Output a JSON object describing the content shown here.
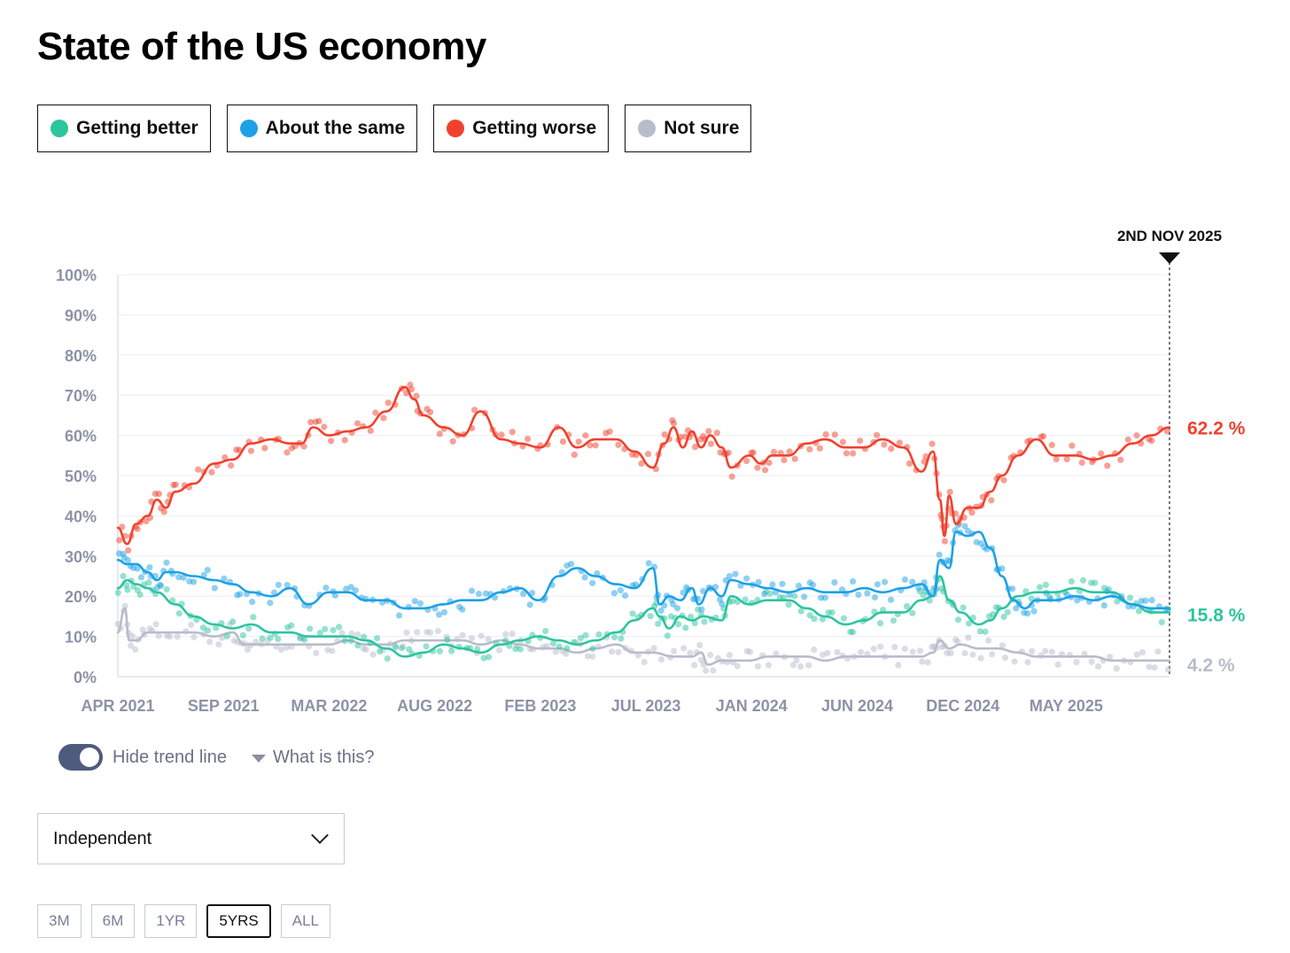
{
  "title": "State of the US economy",
  "legend": [
    {
      "label": "Getting better",
      "color": "#2ec4a0"
    },
    {
      "label": "About the same",
      "color": "#1da1e6"
    },
    {
      "label": "Getting worse",
      "color": "#f0412e"
    },
    {
      "label": "Not sure",
      "color": "#b8bccb"
    }
  ],
  "chart_data": {
    "type": "line",
    "title": "State of the US economy",
    "xlabel": "",
    "ylabel": "",
    "ylim": [
      0,
      100
    ],
    "x_range": [
      2021.25,
      2025.83
    ],
    "y_ticks": [
      "100%",
      "90%",
      "80%",
      "70%",
      "60%",
      "50%",
      "40%",
      "30%",
      "20%",
      "10%",
      "0%"
    ],
    "x_ticks": [
      {
        "label": "APR 2021",
        "t": 2021.25
      },
      {
        "label": "SEP 2021",
        "t": 2021.71
      },
      {
        "label": "MAR 2022",
        "t": 2022.17
      },
      {
        "label": "AUG 2022",
        "t": 2022.63
      },
      {
        "label": "FEB 2023",
        "t": 2023.09
      },
      {
        "label": "JUL 2023",
        "t": 2023.55
      },
      {
        "label": "JAN 2024",
        "t": 2024.01
      },
      {
        "label": "JUN 2024",
        "t": 2024.47
      },
      {
        "label": "DEC 2024",
        "t": 2024.93
      },
      {
        "label": "MAY 2025",
        "t": 2025.38
      }
    ],
    "current_marker": {
      "label": "2ND NOV 2025",
      "t": 2025.83
    },
    "series": [
      {
        "name": "Getting worse",
        "color": "#f0412e",
        "end_label": "62.2 %",
        "points": [
          [
            2021.25,
            37
          ],
          [
            2021.29,
            33
          ],
          [
            2021.33,
            38
          ],
          [
            2021.38,
            40
          ],
          [
            2021.42,
            44
          ],
          [
            2021.46,
            42
          ],
          [
            2021.5,
            46
          ],
          [
            2021.58,
            48
          ],
          [
            2021.67,
            53
          ],
          [
            2021.75,
            54
          ],
          [
            2021.83,
            58
          ],
          [
            2021.92,
            59
          ],
          [
            2022.0,
            58
          ],
          [
            2022.05,
            58
          ],
          [
            2022.1,
            62
          ],
          [
            2022.17,
            60
          ],
          [
            2022.25,
            61
          ],
          [
            2022.33,
            62
          ],
          [
            2022.42,
            66
          ],
          [
            2022.5,
            72
          ],
          [
            2022.54,
            69
          ],
          [
            2022.58,
            65
          ],
          [
            2022.67,
            62
          ],
          [
            2022.75,
            60
          ],
          [
            2022.83,
            66
          ],
          [
            2022.92,
            59
          ],
          [
            2023.0,
            58
          ],
          [
            2023.09,
            57
          ],
          [
            2023.17,
            62
          ],
          [
            2023.25,
            57
          ],
          [
            2023.33,
            59
          ],
          [
            2023.42,
            59
          ],
          [
            2023.5,
            56
          ],
          [
            2023.58,
            52
          ],
          [
            2023.63,
            58
          ],
          [
            2023.67,
            62
          ],
          [
            2023.71,
            57
          ],
          [
            2023.75,
            61
          ],
          [
            2023.79,
            57
          ],
          [
            2023.83,
            60
          ],
          [
            2023.88,
            57
          ],
          [
            2023.92,
            52
          ],
          [
            2024.0,
            55
          ],
          [
            2024.05,
            53
          ],
          [
            2024.1,
            55
          ],
          [
            2024.17,
            55
          ],
          [
            2024.25,
            58
          ],
          [
            2024.33,
            59
          ],
          [
            2024.42,
            57
          ],
          [
            2024.5,
            57
          ],
          [
            2024.58,
            59
          ],
          [
            2024.67,
            57
          ],
          [
            2024.75,
            51
          ],
          [
            2024.8,
            56
          ],
          [
            2024.83,
            44
          ],
          [
            2024.85,
            35
          ],
          [
            2024.87,
            45
          ],
          [
            2024.9,
            38
          ],
          [
            2024.95,
            42
          ],
          [
            2025.0,
            42
          ],
          [
            2025.05,
            46
          ],
          [
            2025.1,
            50
          ],
          [
            2025.17,
            55
          ],
          [
            2025.25,
            59
          ],
          [
            2025.33,
            55
          ],
          [
            2025.42,
            55
          ],
          [
            2025.5,
            54
          ],
          [
            2025.58,
            55
          ],
          [
            2025.67,
            58
          ],
          [
            2025.75,
            60
          ],
          [
            2025.83,
            62
          ]
        ]
      },
      {
        "name": "About the same",
        "color": "#1da1e6",
        "end_label": "",
        "points": [
          [
            2021.25,
            29
          ],
          [
            2021.29,
            28
          ],
          [
            2021.33,
            28
          ],
          [
            2021.38,
            26
          ],
          [
            2021.42,
            24
          ],
          [
            2021.46,
            26
          ],
          [
            2021.5,
            26
          ],
          [
            2021.58,
            25
          ],
          [
            2021.67,
            24
          ],
          [
            2021.75,
            23
          ],
          [
            2021.83,
            21
          ],
          [
            2021.92,
            20
          ],
          [
            2022.0,
            22
          ],
          [
            2022.08,
            18
          ],
          [
            2022.17,
            21
          ],
          [
            2022.25,
            21
          ],
          [
            2022.33,
            19
          ],
          [
            2022.42,
            19
          ],
          [
            2022.5,
            17
          ],
          [
            2022.58,
            17
          ],
          [
            2022.67,
            18
          ],
          [
            2022.75,
            19
          ],
          [
            2022.83,
            19
          ],
          [
            2022.92,
            21
          ],
          [
            2023.0,
            22
          ],
          [
            2023.08,
            19
          ],
          [
            2023.17,
            25
          ],
          [
            2023.25,
            27
          ],
          [
            2023.33,
            25
          ],
          [
            2023.42,
            23
          ],
          [
            2023.5,
            22
          ],
          [
            2023.58,
            27
          ],
          [
            2023.61,
            18
          ],
          [
            2023.65,
            20
          ],
          [
            2023.7,
            19
          ],
          [
            2023.75,
            22
          ],
          [
            2023.78,
            18
          ],
          [
            2023.83,
            22
          ],
          [
            2023.88,
            20
          ],
          [
            2023.92,
            24
          ],
          [
            2024.0,
            23
          ],
          [
            2024.08,
            22
          ],
          [
            2024.17,
            21
          ],
          [
            2024.25,
            22
          ],
          [
            2024.33,
            21
          ],
          [
            2024.42,
            21
          ],
          [
            2024.5,
            22
          ],
          [
            2024.58,
            21
          ],
          [
            2024.67,
            22
          ],
          [
            2024.75,
            23
          ],
          [
            2024.8,
            20
          ],
          [
            2024.83,
            29
          ],
          [
            2024.87,
            27
          ],
          [
            2024.9,
            36
          ],
          [
            2024.95,
            35
          ],
          [
            2025.0,
            36
          ],
          [
            2025.05,
            32
          ],
          [
            2025.1,
            25
          ],
          [
            2025.15,
            19
          ],
          [
            2025.2,
            17
          ],
          [
            2025.25,
            19
          ],
          [
            2025.33,
            19
          ],
          [
            2025.42,
            20
          ],
          [
            2025.5,
            19
          ],
          [
            2025.58,
            20
          ],
          [
            2025.67,
            18
          ],
          [
            2025.75,
            17
          ],
          [
            2025.83,
            17
          ]
        ]
      },
      {
        "name": "Getting better",
        "color": "#2ec4a0",
        "end_label": "15.8 %",
        "points": [
          [
            2021.25,
            22
          ],
          [
            2021.29,
            24
          ],
          [
            2021.33,
            23
          ],
          [
            2021.38,
            22
          ],
          [
            2021.42,
            21
          ],
          [
            2021.5,
            18
          ],
          [
            2021.58,
            15
          ],
          [
            2021.67,
            13
          ],
          [
            2021.75,
            12
          ],
          [
            2021.83,
            13
          ],
          [
            2021.92,
            11
          ],
          [
            2022.0,
            11
          ],
          [
            2022.08,
            10
          ],
          [
            2022.17,
            10
          ],
          [
            2022.25,
            10
          ],
          [
            2022.33,
            9
          ],
          [
            2022.42,
            7
          ],
          [
            2022.5,
            5
          ],
          [
            2022.58,
            6
          ],
          [
            2022.67,
            8
          ],
          [
            2022.75,
            7
          ],
          [
            2022.83,
            6
          ],
          [
            2022.92,
            8
          ],
          [
            2023.0,
            9
          ],
          [
            2023.08,
            10
          ],
          [
            2023.17,
            9
          ],
          [
            2023.25,
            8
          ],
          [
            2023.33,
            9
          ],
          [
            2023.42,
            11
          ],
          [
            2023.5,
            14
          ],
          [
            2023.58,
            17
          ],
          [
            2023.61,
            15
          ],
          [
            2023.65,
            12
          ],
          [
            2023.7,
            15
          ],
          [
            2023.75,
            14
          ],
          [
            2023.8,
            15
          ],
          [
            2023.88,
            14
          ],
          [
            2023.92,
            20
          ],
          [
            2024.0,
            18
          ],
          [
            2024.08,
            19
          ],
          [
            2024.17,
            19
          ],
          [
            2024.25,
            17
          ],
          [
            2024.33,
            15
          ],
          [
            2024.42,
            13
          ],
          [
            2024.5,
            14
          ],
          [
            2024.58,
            16
          ],
          [
            2024.67,
            16
          ],
          [
            2024.75,
            19
          ],
          [
            2024.8,
            20
          ],
          [
            2024.83,
            25
          ],
          [
            2024.87,
            19
          ],
          [
            2024.92,
            16
          ],
          [
            2025.0,
            13
          ],
          [
            2025.05,
            14
          ],
          [
            2025.1,
            17
          ],
          [
            2025.17,
            20
          ],
          [
            2025.25,
            21
          ],
          [
            2025.33,
            21
          ],
          [
            2025.42,
            22
          ],
          [
            2025.5,
            21
          ],
          [
            2025.58,
            21
          ],
          [
            2025.67,
            18
          ],
          [
            2025.75,
            16
          ],
          [
            2025.83,
            16
          ]
        ]
      },
      {
        "name": "Not sure",
        "color": "#b8bccb",
        "end_label": "4.2 %",
        "points": [
          [
            2021.25,
            11
          ],
          [
            2021.28,
            17
          ],
          [
            2021.3,
            9
          ],
          [
            2021.33,
            9
          ],
          [
            2021.38,
            11
          ],
          [
            2021.42,
            11
          ],
          [
            2021.5,
            11
          ],
          [
            2021.58,
            11
          ],
          [
            2021.67,
            10
          ],
          [
            2021.75,
            11
          ],
          [
            2021.8,
            8
          ],
          [
            2021.83,
            8
          ],
          [
            2021.92,
            8
          ],
          [
            2022.0,
            8
          ],
          [
            2022.08,
            8
          ],
          [
            2022.17,
            8
          ],
          [
            2022.25,
            9
          ],
          [
            2022.33,
            8
          ],
          [
            2022.42,
            8
          ],
          [
            2022.5,
            9
          ],
          [
            2022.58,
            9
          ],
          [
            2022.67,
            9
          ],
          [
            2022.75,
            9
          ],
          [
            2022.83,
            8
          ],
          [
            2022.92,
            9
          ],
          [
            2023.0,
            8
          ],
          [
            2023.08,
            7
          ],
          [
            2023.17,
            7
          ],
          [
            2023.25,
            6
          ],
          [
            2023.33,
            7
          ],
          [
            2023.42,
            8
          ],
          [
            2023.5,
            6
          ],
          [
            2023.58,
            6
          ],
          [
            2023.67,
            5
          ],
          [
            2023.75,
            5
          ],
          [
            2023.79,
            6
          ],
          [
            2023.82,
            3
          ],
          [
            2023.88,
            4
          ],
          [
            2023.92,
            4
          ],
          [
            2024.0,
            4
          ],
          [
            2024.08,
            5
          ],
          [
            2024.17,
            5
          ],
          [
            2024.25,
            5
          ],
          [
            2024.33,
            4
          ],
          [
            2024.42,
            5
          ],
          [
            2024.5,
            5
          ],
          [
            2024.58,
            5
          ],
          [
            2024.67,
            5
          ],
          [
            2024.75,
            5
          ],
          [
            2024.8,
            6
          ],
          [
            2024.83,
            9
          ],
          [
            2024.87,
            7
          ],
          [
            2024.92,
            8
          ],
          [
            2025.0,
            7
          ],
          [
            2025.08,
            7
          ],
          [
            2025.17,
            6
          ],
          [
            2025.25,
            5
          ],
          [
            2025.33,
            5
          ],
          [
            2025.42,
            5
          ],
          [
            2025.5,
            5
          ],
          [
            2025.58,
            4
          ],
          [
            2025.67,
            4
          ],
          [
            2025.75,
            4
          ],
          [
            2025.83,
            4
          ]
        ]
      }
    ]
  },
  "controls": {
    "toggle_label": "Hide trend line",
    "help_label": "What is this?",
    "dropdown_value": "Independent",
    "ranges": [
      "3M",
      "6M",
      "1YR",
      "5YRS",
      "ALL"
    ],
    "active_range": "5YRS"
  }
}
